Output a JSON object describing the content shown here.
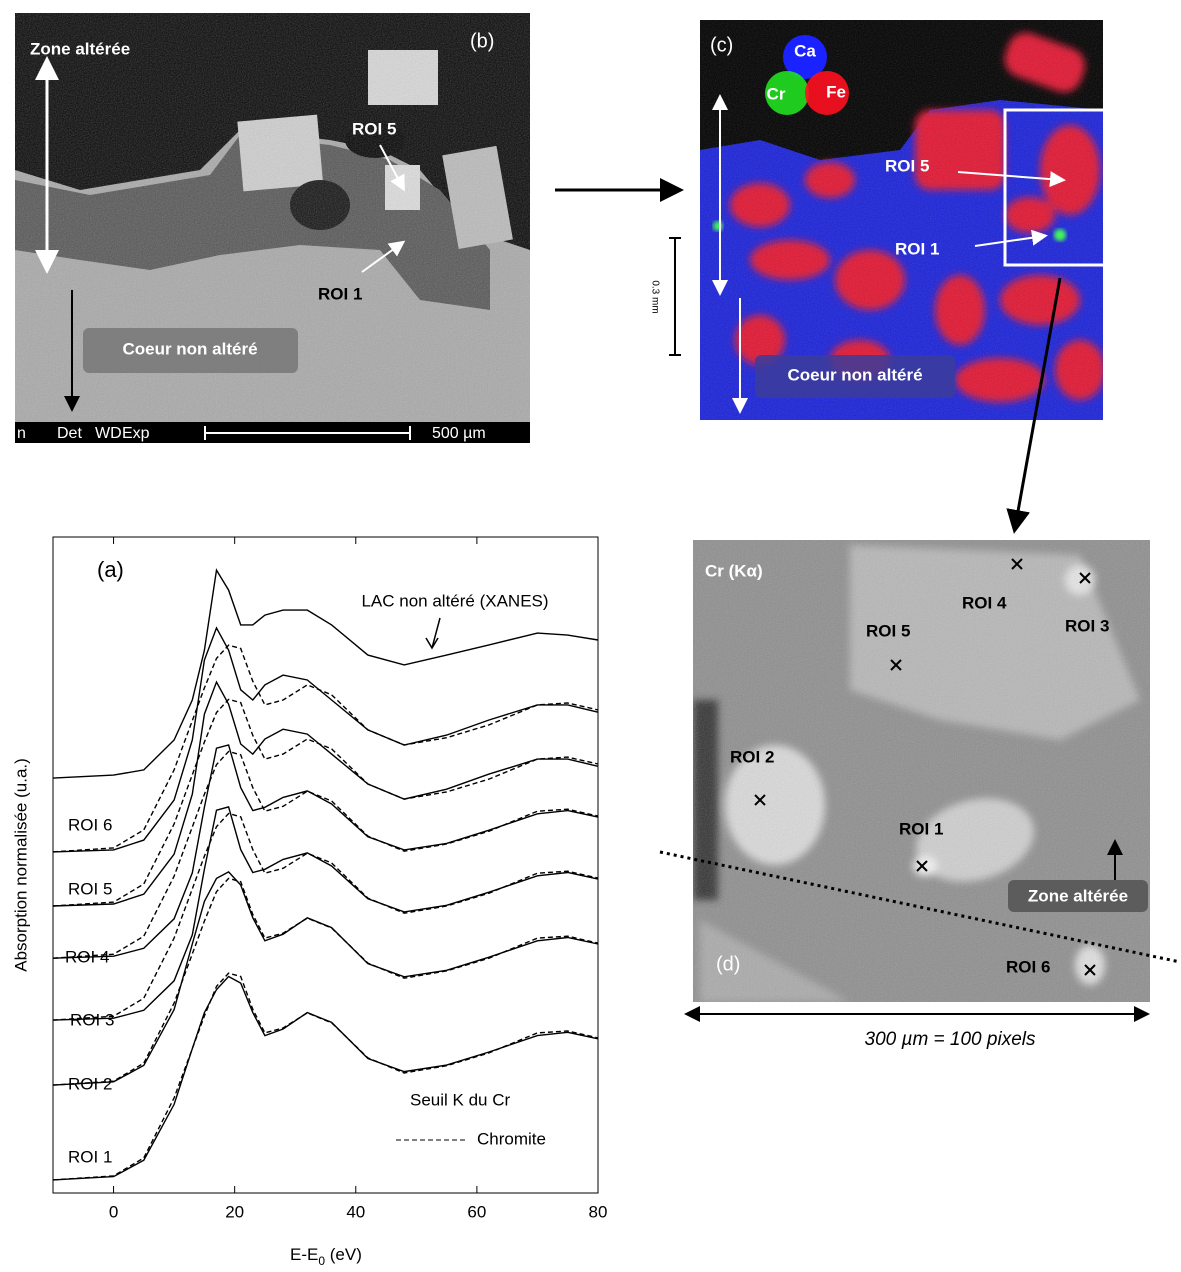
{
  "panel_b": {
    "label": "(b)",
    "zone_label": "Zone altérée",
    "core_label": "Coeur non altéré",
    "roi_labels": [
      "ROI 5",
      "ROI 1"
    ],
    "status_bar": [
      "n",
      "Det",
      "WD",
      "Exp"
    ],
    "scale_label": "500 µm"
  },
  "panel_c": {
    "label": "(c)",
    "legend": [
      "Ca",
      "Cr",
      "Fe"
    ],
    "roi_labels": [
      "ROI 5",
      "ROI 1"
    ],
    "core_label": "Coeur non altéré",
    "scale_label": "0.3 mm"
  },
  "panel_d": {
    "label": "(d)",
    "title": "Cr (Kα)",
    "roi_labels": [
      "ROI 4",
      "ROI 3",
      "ROI 5",
      "ROI 2",
      "ROI 1",
      "ROI 6"
    ],
    "zone_label": "Zone altérée",
    "scale_caption": "300 µm = 100 pixels"
  },
  "chart_data": {
    "type": "line",
    "panel_label": "(a)",
    "ylabel": "Absorption normalisée (u.a.)",
    "xlabel_parts": [
      "E-E",
      "0",
      " (eV)"
    ],
    "annotation": "Seuil K du Cr",
    "x": [
      -10,
      0,
      5,
      10,
      13,
      15,
      17,
      19,
      21,
      23,
      25,
      28,
      32,
      36,
      42,
      48,
      55,
      62,
      70,
      75,
      80
    ],
    "xlim": [
      -10,
      80
    ],
    "xticks": [
      0,
      20,
      40,
      60,
      80
    ],
    "ylim": [
      0,
      20
    ],
    "series": [
      {
        "name": "LAC non altéré (XANES)",
        "color": "#000000",
        "values": [
          12.65,
          12.74,
          12.9,
          13.81,
          15.03,
          16.55,
          18.99,
          18.38,
          17.32,
          17.32,
          17.62,
          17.77,
          17.77,
          17.32,
          16.4,
          16.1,
          16.4,
          16.71,
          17.07,
          17.01,
          16.86
        ]
      },
      {
        "name": "ROI 6",
        "color": "#000000",
        "values": [
          10.4,
          10.46,
          10.76,
          11.98,
          13.81,
          16.25,
          17.23,
          16.55,
          15.34,
          15.03,
          15.49,
          15.79,
          15.64,
          15.03,
          14.12,
          13.66,
          13.96,
          14.42,
          14.88,
          14.88,
          14.66
        ]
      },
      {
        "name": "ROI 5",
        "color": "#000000",
        "values": [
          8.75,
          8.81,
          9.11,
          10.33,
          12.16,
          14.6,
          15.58,
          14.9,
          13.69,
          13.38,
          13.84,
          14.14,
          13.99,
          13.38,
          12.47,
          12.01,
          12.31,
          12.77,
          13.23,
          13.23,
          13.01
        ]
      },
      {
        "name": "ROI 4",
        "color": "#000000",
        "values": [
          7.16,
          7.22,
          7.46,
          8.36,
          9.76,
          11.76,
          13.56,
          13.66,
          12.36,
          11.66,
          11.76,
          12.06,
          12.26,
          11.86,
          10.86,
          10.46,
          10.66,
          11.06,
          11.56,
          11.66,
          11.46
        ]
      },
      {
        "name": "ROI 3",
        "color": "#000000",
        "values": [
          5.27,
          5.33,
          5.57,
          6.47,
          7.87,
          9.87,
          11.67,
          11.77,
          10.47,
          9.77,
          9.87,
          10.17,
          10.37,
          9.97,
          8.97,
          8.57,
          8.77,
          9.17,
          9.67,
          9.77,
          9.57
        ]
      },
      {
        "name": "ROI 2",
        "color": "#000000",
        "values": [
          3.29,
          3.39,
          3.89,
          5.59,
          7.59,
          8.89,
          9.59,
          9.79,
          9.39,
          8.39,
          7.69,
          7.89,
          8.39,
          8.09,
          6.99,
          6.59,
          6.79,
          7.19,
          7.69,
          7.79,
          7.59
        ]
      },
      {
        "name": "ROI 1",
        "color": "#000000",
        "values": [
          0.4,
          0.5,
          1.0,
          2.7,
          4.4,
          5.5,
          6.2,
          6.6,
          6.4,
          5.5,
          4.8,
          5.0,
          5.5,
          5.2,
          4.1,
          3.7,
          3.9,
          4.3,
          4.8,
          4.9,
          4.7
        ]
      }
    ],
    "reference": {
      "name": "Chromite",
      "color": "#000000",
      "style": "dashed",
      "curves": [
        [
          10.4,
          10.52,
          11.07,
          12.9,
          14.4,
          15.4,
          16.3,
          16.7,
          16.6,
          15.6,
          14.88,
          15.03,
          15.49,
          15.19,
          14.12,
          13.66,
          13.88,
          14.27,
          14.88,
          14.94,
          14.73
        ],
        [
          8.75,
          8.87,
          9.42,
          11.25,
          12.75,
          13.75,
          14.65,
          15.05,
          14.95,
          13.95,
          13.23,
          13.38,
          13.84,
          13.54,
          12.47,
          12.01,
          12.23,
          12.62,
          13.23,
          13.29,
          13.08
        ],
        [
          7.16,
          7.28,
          7.83,
          9.66,
          11.16,
          12.16,
          13.06,
          13.46,
          13.36,
          12.36,
          11.64,
          11.79,
          12.25,
          11.95,
          10.88,
          10.42,
          10.64,
          11.03,
          11.64,
          11.7,
          11.49
        ],
        [
          5.27,
          5.39,
          5.94,
          7.77,
          9.27,
          10.27,
          11.17,
          11.57,
          11.47,
          10.47,
          9.75,
          9.9,
          10.36,
          10.06,
          8.99,
          8.53,
          8.75,
          9.14,
          9.75,
          9.81,
          9.6
        ],
        [
          3.29,
          3.41,
          3.96,
          5.79,
          7.29,
          8.29,
          9.19,
          9.59,
          9.49,
          8.49,
          7.77,
          7.92,
          8.38,
          8.08,
          7.01,
          6.55,
          6.77,
          7.16,
          7.77,
          7.83,
          7.62
        ],
        [
          0.4,
          0.52,
          1.07,
          2.9,
          4.4,
          5.4,
          6.3,
          6.7,
          6.6,
          5.6,
          4.88,
          5.03,
          5.49,
          5.19,
          4.12,
          3.66,
          3.88,
          4.27,
          4.88,
          4.94,
          4.73
        ]
      ]
    }
  }
}
